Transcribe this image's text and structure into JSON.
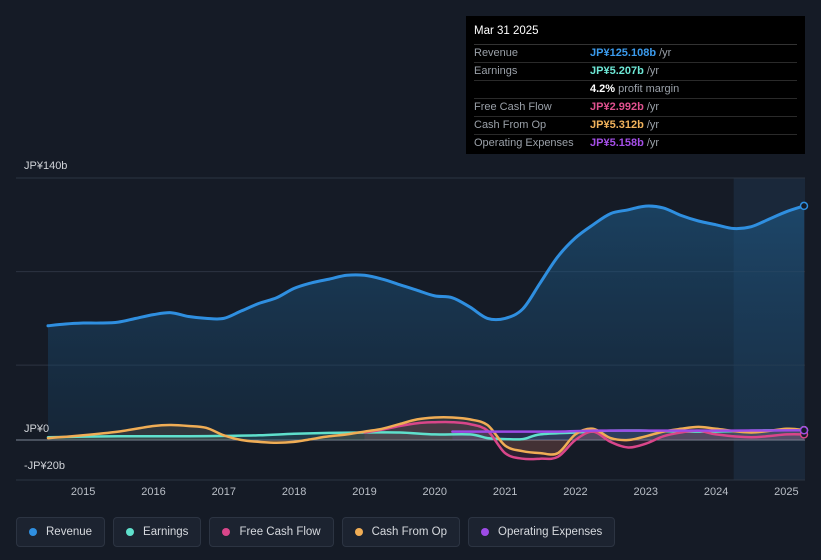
{
  "tooltip": {
    "date": "Mar 31 2025",
    "rows": [
      {
        "label": "Revenue",
        "value": "JP¥125.108b",
        "unit": "/yr",
        "color": "#3b9bed"
      },
      {
        "label": "Earnings",
        "value": "JP¥5.207b",
        "unit": "/yr",
        "color": "#6ee8d6"
      },
      {
        "label": "",
        "value": "4.2%",
        "unit": "profit margin",
        "color": "#ffffff"
      },
      {
        "label": "Free Cash Flow",
        "value": "JP¥2.992b",
        "unit": "/yr",
        "color": "#e0518f"
      },
      {
        "label": "Cash From Op",
        "value": "JP¥5.312b",
        "unit": "/yr",
        "color": "#f2b35c"
      },
      {
        "label": "Operating Expenses",
        "value": "JP¥5.158b",
        "unit": "/yr",
        "color": "#a54fe8"
      }
    ]
  },
  "legend": [
    {
      "label": "Revenue",
      "color": "#2f8fe0"
    },
    {
      "label": "Earnings",
      "color": "#5fe0cc"
    },
    {
      "label": "Free Cash Flow",
      "color": "#d9468a"
    },
    {
      "label": "Cash From Op",
      "color": "#f0ad55"
    },
    {
      "label": "Operating Expenses",
      "color": "#9d4be6"
    }
  ],
  "chart_data": {
    "type": "line",
    "title": "",
    "ylim": [
      -20,
      140
    ],
    "y_tick_labels": [
      "JP¥140b",
      "JP¥0",
      "-JP¥20b"
    ],
    "x_tick_labels": [
      "2015",
      "2016",
      "2017",
      "2018",
      "2019",
      "2020",
      "2021",
      "2022",
      "2023",
      "2024",
      "2025"
    ],
    "x_range": [
      2014.5,
      2025.25
    ],
    "forecast_start": 2024.25,
    "series": [
      {
        "name": "Revenue",
        "color": "#2f8fe0",
        "area": true,
        "x": [
          2014.5,
          2014.75,
          2015.0,
          2015.25,
          2015.5,
          2015.75,
          2016.0,
          2016.25,
          2016.5,
          2016.75,
          2017.0,
          2017.25,
          2017.5,
          2017.75,
          2018.0,
          2018.25,
          2018.5,
          2018.75,
          2019.0,
          2019.25,
          2019.5,
          2019.75,
          2020.0,
          2020.25,
          2020.5,
          2020.75,
          2021.0,
          2021.25,
          2021.5,
          2021.75,
          2022.0,
          2022.25,
          2022.5,
          2022.75,
          2023.0,
          2023.25,
          2023.5,
          2023.75,
          2024.0,
          2024.25,
          2024.5,
          2024.75,
          2025.0,
          2025.25
        ],
        "values": [
          61,
          62,
          62.5,
          62.5,
          63,
          65,
          67,
          68,
          66,
          65,
          65,
          69,
          73,
          76,
          81,
          84,
          86,
          88,
          88,
          86,
          83,
          80,
          77,
          76,
          71,
          65,
          65,
          70,
          84,
          98,
          108,
          115,
          121,
          123,
          125,
          124,
          120,
          117,
          115,
          113,
          114,
          118,
          122,
          125.1
        ]
      },
      {
        "name": "Earnings",
        "color": "#5fe0cc",
        "area": false,
        "x": [
          2014.5,
          2015.0,
          2015.5,
          2016.0,
          2016.5,
          2017.0,
          2017.5,
          2018.0,
          2018.5,
          2019.0,
          2019.5,
          2020.0,
          2020.5,
          2020.75,
          2021.0,
          2021.25,
          2021.5,
          2022.0,
          2022.5,
          2023.0,
          2023.5,
          2024.0,
          2024.5,
          2025.0,
          2025.25
        ],
        "values": [
          1.5,
          1.8,
          2,
          2,
          2,
          2.2,
          2.5,
          3.3,
          3.8,
          4,
          4,
          3,
          3,
          1,
          0.5,
          0.5,
          3,
          4,
          5,
          5,
          4.5,
          4.5,
          5,
          5.2,
          5.2
        ]
      },
      {
        "name": "Free Cash Flow",
        "color": "#d9468a",
        "area": false,
        "x": [
          2019.0,
          2019.25,
          2019.5,
          2019.75,
          2020.0,
          2020.25,
          2020.5,
          2020.75,
          2021.0,
          2021.25,
          2021.5,
          2021.75,
          2022.0,
          2022.25,
          2022.5,
          2022.75,
          2023.0,
          2023.25,
          2023.5,
          2023.75,
          2024.0,
          2024.5,
          2025.0,
          2025.25
        ],
        "values": [
          4,
          5.5,
          7.5,
          9,
          9.5,
          9.5,
          8.5,
          5,
          -7,
          -10,
          -10,
          -9,
          0,
          4.5,
          -1,
          -4,
          -2,
          2,
          4,
          5,
          3,
          1.5,
          3,
          3
        ]
      },
      {
        "name": "Cash From Op",
        "color": "#f0ad55",
        "area": false,
        "x": [
          2014.5,
          2015.0,
          2015.5,
          2016.0,
          2016.25,
          2016.5,
          2016.75,
          2017.0,
          2017.25,
          2017.5,
          2017.75,
          2018.0,
          2018.25,
          2018.5,
          2018.75,
          2019.0,
          2019.25,
          2019.5,
          2019.75,
          2020.0,
          2020.25,
          2020.5,
          2020.75,
          2021.0,
          2021.25,
          2021.5,
          2021.75,
          2022.0,
          2022.25,
          2022.5,
          2022.75,
          2023.0,
          2023.25,
          2023.5,
          2023.75,
          2024.0,
          2024.5,
          2025.0,
          2025.25
        ],
        "values": [
          1,
          2.5,
          4.5,
          7.5,
          8,
          7.5,
          6.5,
          2.5,
          0,
          -1,
          -1.5,
          -1,
          0.5,
          2,
          3,
          4.5,
          6,
          8.5,
          11,
          12,
          12,
          11,
          8,
          -3,
          -6,
          -7,
          -7,
          3,
          6,
          1,
          0,
          2,
          4.5,
          6,
          7,
          6,
          4,
          6,
          5.3
        ]
      },
      {
        "name": "Operating Expenses",
        "color": "#9d4be6",
        "area": false,
        "x": [
          2020.25,
          2020.75,
          2021.25,
          2021.75,
          2022.25,
          2022.75,
          2023.25,
          2023.75,
          2024.25,
          2024.75,
          2025.25
        ],
        "values": [
          4.5,
          4.5,
          4.5,
          4.5,
          5,
          5,
          5,
          5,
          5,
          5.1,
          5.2
        ]
      }
    ]
  }
}
